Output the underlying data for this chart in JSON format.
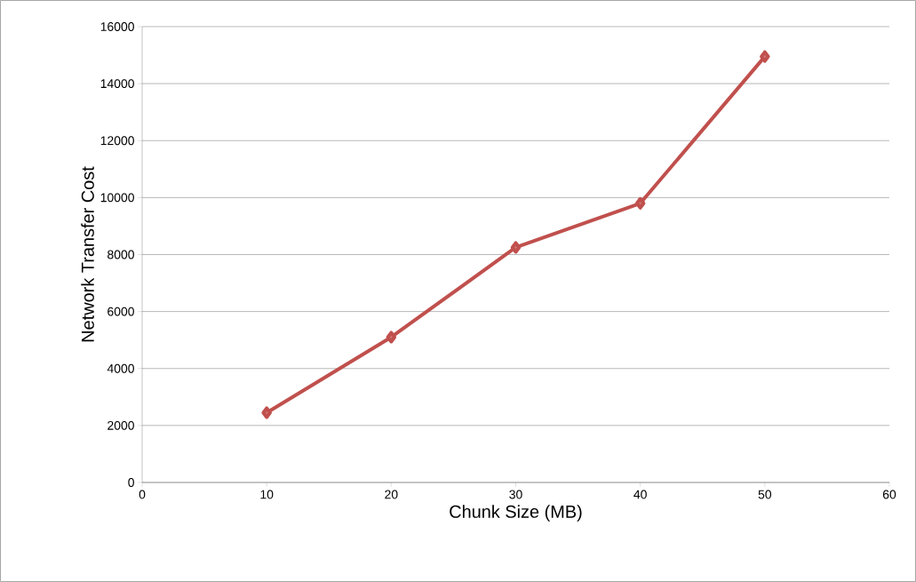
{
  "chart_data": {
    "type": "line",
    "xlabel": "Chunk Size (MB)",
    "ylabel": "Network Transfer Cost",
    "x": [
      10,
      20,
      30,
      40,
      50
    ],
    "series": [
      {
        "color": "#c0504d",
        "values": [
          2450,
          5100,
          8250,
          9800,
          14950
        ]
      }
    ],
    "xlim": [
      0,
      60
    ],
    "xticks": [
      0,
      10,
      20,
      30,
      40,
      50,
      60
    ],
    "ylim": [
      0,
      16000
    ],
    "yticks": [
      0,
      2000,
      4000,
      6000,
      8000,
      10000,
      12000,
      14000,
      16000
    ],
    "grid": "y",
    "marker": "diamond",
    "line_style": "solid"
  }
}
